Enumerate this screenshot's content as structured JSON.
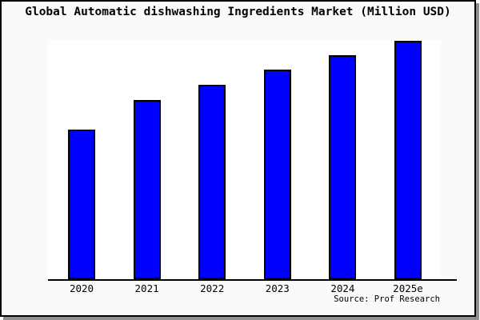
{
  "chart_data": {
    "type": "bar",
    "title": "Global Automatic dishwashing Ingredients Market (Million USD)",
    "categories": [
      "2020",
      "2021",
      "2022",
      "2023",
      "2024",
      "2025e"
    ],
    "values": [
      187,
      224,
      243,
      262,
      280,
      298
    ],
    "value_note": "y-axis has no tick labels; values are relative bar heights read from the plot (plot height = 299)",
    "ylim": [
      0,
      299
    ],
    "xlabel": "",
    "ylabel": "",
    "grid": false,
    "legend": false,
    "bar_color": "#0000ff",
    "bar_border_color": "#000000",
    "source": "Source: Prof Research"
  }
}
